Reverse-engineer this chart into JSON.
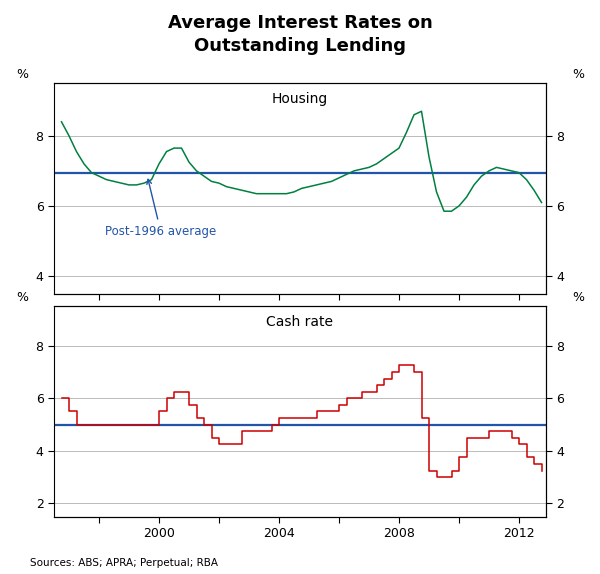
{
  "title": "Average Interest Rates on\nOutstanding Lending",
  "title_fontsize": 13,
  "source_text": "Sources: ABS; APRA; Perpetual; RBA",
  "housing_label": "Housing",
  "cash_label": "Cash rate",
  "avg_label": "Post-1996 average",
  "housing_avg": 6.93,
  "cash_avg": 5.0,
  "housing_color": "#008040",
  "cash_color": "#cc0000",
  "avg_color": "#2255aa",
  "grid_color": "#bbbbbb",
  "housing_ylim": [
    3.5,
    9.5
  ],
  "housing_yticks": [
    4,
    6,
    8
  ],
  "cash_ylim": [
    1.5,
    9.5
  ],
  "cash_yticks": [
    2,
    4,
    6,
    8
  ],
  "xmin": 1996.5,
  "xmax": 2012.9,
  "xticks": [
    1998,
    2000,
    2002,
    2004,
    2006,
    2008,
    2010,
    2012
  ],
  "xticklabels": [
    "",
    "2000",
    "",
    "2004",
    "",
    "2008",
    "",
    "2012"
  ],
  "housing_data": {
    "dates": [
      1996.75,
      1997.0,
      1997.25,
      1997.5,
      1997.75,
      1998.0,
      1998.25,
      1998.5,
      1998.75,
      1999.0,
      1999.25,
      1999.5,
      1999.75,
      2000.0,
      2000.25,
      2000.5,
      2000.75,
      2001.0,
      2001.25,
      2001.5,
      2001.75,
      2002.0,
      2002.25,
      2002.5,
      2002.75,
      2003.0,
      2003.25,
      2003.5,
      2003.75,
      2004.0,
      2004.25,
      2004.5,
      2004.75,
      2005.0,
      2005.25,
      2005.5,
      2005.75,
      2006.0,
      2006.25,
      2006.5,
      2006.75,
      2007.0,
      2007.25,
      2007.5,
      2007.75,
      2008.0,
      2008.25,
      2008.5,
      2008.75,
      2009.0,
      2009.25,
      2009.5,
      2009.75,
      2010.0,
      2010.25,
      2010.5,
      2010.75,
      2011.0,
      2011.25,
      2011.5,
      2011.75,
      2012.0,
      2012.25,
      2012.5,
      2012.75
    ],
    "values": [
      8.4,
      8.0,
      7.55,
      7.2,
      6.95,
      6.85,
      6.75,
      6.7,
      6.65,
      6.6,
      6.6,
      6.65,
      6.75,
      7.2,
      7.55,
      7.65,
      7.65,
      7.25,
      7.0,
      6.85,
      6.7,
      6.65,
      6.55,
      6.5,
      6.45,
      6.4,
      6.35,
      6.35,
      6.35,
      6.35,
      6.35,
      6.4,
      6.5,
      6.55,
      6.6,
      6.65,
      6.7,
      6.8,
      6.9,
      7.0,
      7.05,
      7.1,
      7.2,
      7.35,
      7.5,
      7.65,
      8.1,
      8.6,
      8.7,
      7.4,
      6.4,
      5.85,
      5.85,
      6.0,
      6.25,
      6.6,
      6.85,
      7.0,
      7.1,
      7.05,
      7.0,
      6.95,
      6.75,
      6.45,
      6.1
    ]
  },
  "cash_data": {
    "dates": [
      1996.75,
      1997.0,
      1997.25,
      1997.5,
      1997.75,
      1998.0,
      1998.25,
      1998.5,
      1998.75,
      1999.0,
      1999.25,
      1999.5,
      1999.75,
      2000.0,
      2000.25,
      2000.5,
      2000.75,
      2001.0,
      2001.25,
      2001.5,
      2001.75,
      2002.0,
      2002.25,
      2002.5,
      2002.75,
      2003.0,
      2003.25,
      2003.5,
      2003.75,
      2004.0,
      2004.25,
      2004.5,
      2004.75,
      2005.0,
      2005.25,
      2005.5,
      2005.75,
      2006.0,
      2006.25,
      2006.5,
      2006.75,
      2007.0,
      2007.25,
      2007.5,
      2007.75,
      2008.0,
      2008.25,
      2008.5,
      2008.75,
      2009.0,
      2009.25,
      2009.5,
      2009.75,
      2010.0,
      2010.25,
      2010.5,
      2010.75,
      2011.0,
      2011.25,
      2011.5,
      2011.75,
      2012.0,
      2012.25,
      2012.5,
      2012.75
    ],
    "values": [
      6.0,
      5.5,
      5.0,
      5.0,
      5.0,
      5.0,
      5.0,
      5.0,
      5.0,
      5.0,
      5.0,
      5.0,
      5.0,
      5.5,
      6.0,
      6.25,
      6.25,
      5.75,
      5.25,
      5.0,
      4.5,
      4.25,
      4.25,
      4.25,
      4.75,
      4.75,
      4.75,
      4.75,
      5.0,
      5.25,
      5.25,
      5.25,
      5.25,
      5.25,
      5.5,
      5.5,
      5.5,
      5.75,
      6.0,
      6.0,
      6.25,
      6.25,
      6.5,
      6.75,
      7.0,
      7.25,
      7.25,
      7.0,
      5.25,
      3.25,
      3.0,
      3.0,
      3.25,
      3.75,
      4.5,
      4.5,
      4.5,
      4.75,
      4.75,
      4.75,
      4.5,
      4.25,
      3.75,
      3.5,
      3.25
    ]
  }
}
